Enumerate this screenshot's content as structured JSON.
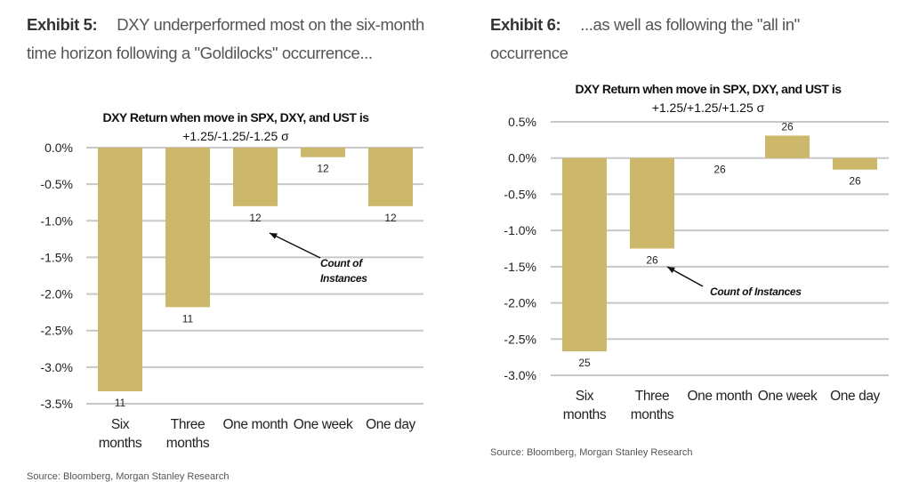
{
  "exhibits": [
    {
      "label": "Exhibit 5:",
      "caption": "DXY underperformed most on the six-month time horizon following a \"Goldilocks\" occurrence...",
      "source": "Source: Bloomberg, Morgan Stanley Research"
    },
    {
      "label": "Exhibit 6:",
      "caption": "...as well as following the \"all in\" occurrence",
      "source": "Source: Bloomberg, Morgan Stanley Research"
    }
  ],
  "chart_data": [
    {
      "type": "bar",
      "title": "DXY Return when move in SPX, DXY, and UST is",
      "subtitle": "+1.25/-1.25/-1.25 σ",
      "categories": [
        [
          "Six",
          "months"
        ],
        [
          "Three",
          "months"
        ],
        [
          "One month"
        ],
        [
          "One week"
        ],
        [
          "One day"
        ]
      ],
      "values": [
        -3.33,
        -2.18,
        -0.8,
        -0.13,
        -0.8
      ],
      "counts": [
        "11",
        "11",
        "12",
        "12",
        "12"
      ],
      "ylim": [
        -3.5,
        0.0
      ],
      "yticks": [
        "0.0%",
        "-0.5%",
        "-1.0%",
        "-1.5%",
        "-2.0%",
        "-2.5%",
        "-3.0%",
        "-3.5%"
      ],
      "annotation": [
        "Count of",
        "Instances"
      ],
      "grid": true,
      "bar_color": "#CDB76A"
    },
    {
      "type": "bar",
      "title": "DXY Return when move in SPX, DXY, and UST is",
      "subtitle": "+1.25/+1.25/+1.25 σ",
      "categories": [
        [
          "Six",
          "months"
        ],
        [
          "Three",
          "months"
        ],
        [
          "One month"
        ],
        [
          "One week"
        ],
        [
          "One day"
        ]
      ],
      "values": [
        -2.67,
        -1.25,
        0.0,
        0.31,
        -0.16
      ],
      "counts": [
        "25",
        "26",
        "26",
        "26",
        "26"
      ],
      "ylim": [
        -3.0,
        0.5
      ],
      "yticks": [
        "0.5%",
        "0.0%",
        "-0.5%",
        "-1.0%",
        "-1.5%",
        "-2.0%",
        "-2.5%",
        "-3.0%"
      ],
      "annotation": [
        "Count of Instances"
      ],
      "grid": true,
      "bar_color": "#CDB76A"
    }
  ]
}
